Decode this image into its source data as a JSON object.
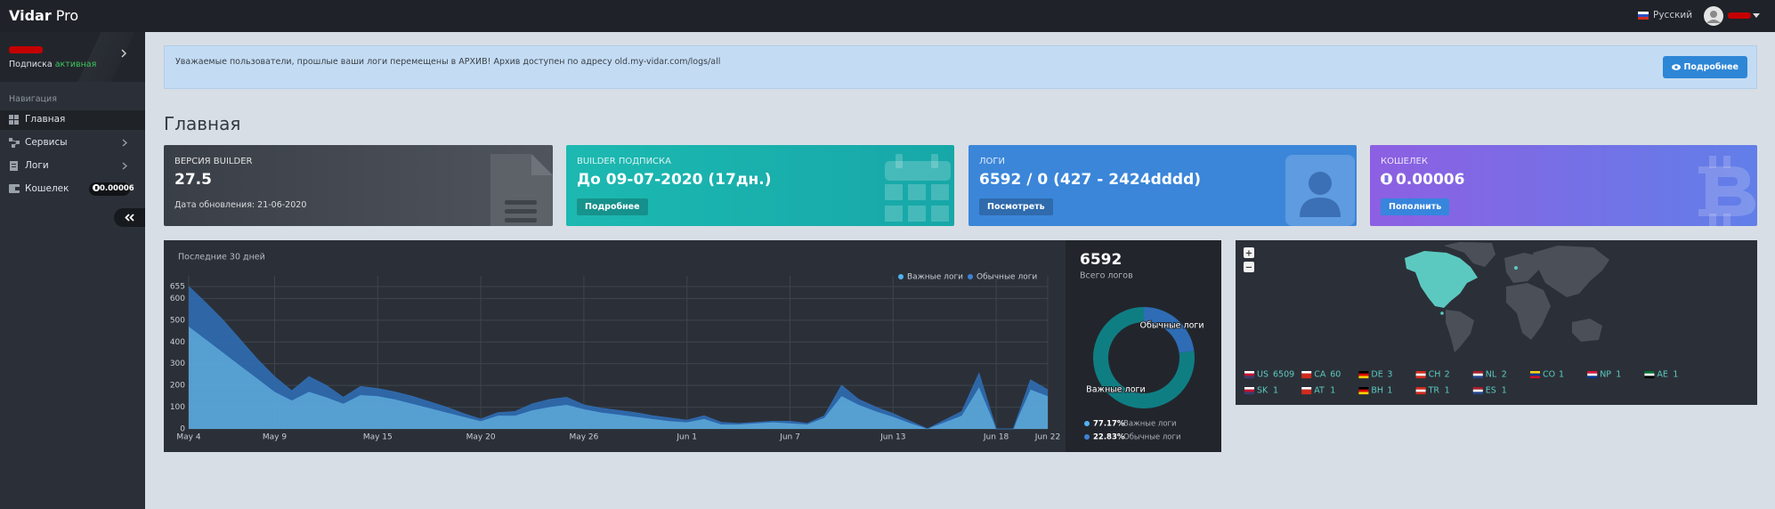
{
  "header": {
    "brand": "Vidar",
    "brand_suffix": "Pro",
    "language": "Русский"
  },
  "sidebar": {
    "subscription_label": "Подписка",
    "subscription_status": "активная",
    "nav_title": "Навигация",
    "menu": [
      "Главная",
      "Сервисы",
      "Логи",
      "Кошелек"
    ],
    "wallet_badge": "0.00006"
  },
  "alert": {
    "text": "Уважаемые пользователи, прошлые ваши логи перемещены в АРХИВ! Архив доступен по адресу old.my-vidar.com/logs/all",
    "button": "Подробнее"
  },
  "page_title": "Главная",
  "cards": [
    {
      "label": "ВЕРСИЯ BUILDER",
      "value": "27.5",
      "note": "Дата обновления: 21-06-2020"
    },
    {
      "label": "BUILDER ПОДПИСКА",
      "value": "До 09-07-2020 (17дн.)",
      "button": "Подробнее"
    },
    {
      "label": "ЛОГИ",
      "value": "6592 / 0 (427 - 2424dddd)",
      "button": "Посмотреть"
    },
    {
      "label": "КОШЕЛЕК",
      "value": "0.00006",
      "button": "Пополнить"
    }
  ],
  "chart_data": [
    {
      "type": "area",
      "stacked": true,
      "subtitle": "Последние 30 дней",
      "categories": [
        "May 4",
        null,
        null,
        null,
        null,
        "May 9",
        null,
        null,
        null,
        null,
        null,
        "May 15",
        null,
        null,
        null,
        null,
        null,
        "May 20",
        null,
        null,
        null,
        null,
        null,
        "May 26",
        null,
        null,
        null,
        null,
        null,
        "Jun 1",
        null,
        null,
        null,
        null,
        null,
        "Jun 7",
        null,
        null,
        null,
        null,
        null,
        "Jun 13",
        null,
        null,
        null,
        null,
        null,
        "Jun 18",
        null,
        null,
        "Jun 22"
      ],
      "series": [
        {
          "name": "Важные логи",
          "color": "#5aa9de",
          "legend_color": "#4fb3f2",
          "values": [
            470,
            410,
            350,
            290,
            230,
            170,
            130,
            170,
            145,
            115,
            155,
            150,
            135,
            115,
            95,
            75,
            55,
            35,
            60,
            60,
            85,
            100,
            110,
            90,
            75,
            65,
            55,
            45,
            35,
            30,
            45,
            20,
            20,
            25,
            30,
            25,
            20,
            50,
            150,
            110,
            80,
            55,
            25,
            0,
            30,
            60,
            190,
            0,
            0,
            180,
            150
          ]
        },
        {
          "name": "Обычные логи",
          "color": "#2f6bb0",
          "legend_color": "#3d82d6",
          "values": [
            185,
            170,
            150,
            120,
            90,
            70,
            45,
            70,
            55,
            30,
            40,
            35,
            35,
            35,
            30,
            25,
            15,
            10,
            15,
            20,
            30,
            35,
            35,
            20,
            20,
            20,
            20,
            15,
            15,
            10,
            15,
            10,
            5,
            5,
            5,
            10,
            5,
            10,
            50,
            25,
            20,
            15,
            10,
            0,
            10,
            20,
            65,
            0,
            0,
            45,
            30
          ]
        }
      ],
      "ylim": [
        0,
        655
      ],
      "yticks": [
        0,
        100,
        200,
        300,
        400,
        500,
        600,
        655
      ],
      "grid": true,
      "legend": "top-right"
    },
    {
      "type": "donut",
      "total": 6592,
      "total_label": "Всего логов",
      "categories": [
        "Важные логи",
        "Обычные логи"
      ],
      "values": [
        77.17,
        22.83
      ],
      "value_labels": [
        "77.17%",
        "22.83%"
      ],
      "colors": [
        "#0f7e83",
        "#2e6cb5"
      ],
      "legend_colors": [
        "#4fb3f2",
        "#3d82d6"
      ]
    }
  ],
  "map": {
    "zoom_in": "+",
    "zoom_out": "−",
    "countries": [
      {
        "code": "US",
        "count": 6509
      },
      {
        "code": "CA",
        "count": 60
      },
      {
        "code": "DE",
        "count": 3
      },
      {
        "code": "CH",
        "count": 2
      },
      {
        "code": "NL",
        "count": 2
      },
      {
        "code": "CO",
        "count": 1
      },
      {
        "code": "NP",
        "count": 1
      },
      {
        "code": "AE",
        "count": 1
      },
      {
        "code": "SK",
        "count": 1
      },
      {
        "code": "AT",
        "count": 1
      },
      {
        "code": "BH",
        "count": 1
      },
      {
        "code": "TR",
        "count": 1
      },
      {
        "code": "ES",
        "count": 1
      }
    ]
  }
}
